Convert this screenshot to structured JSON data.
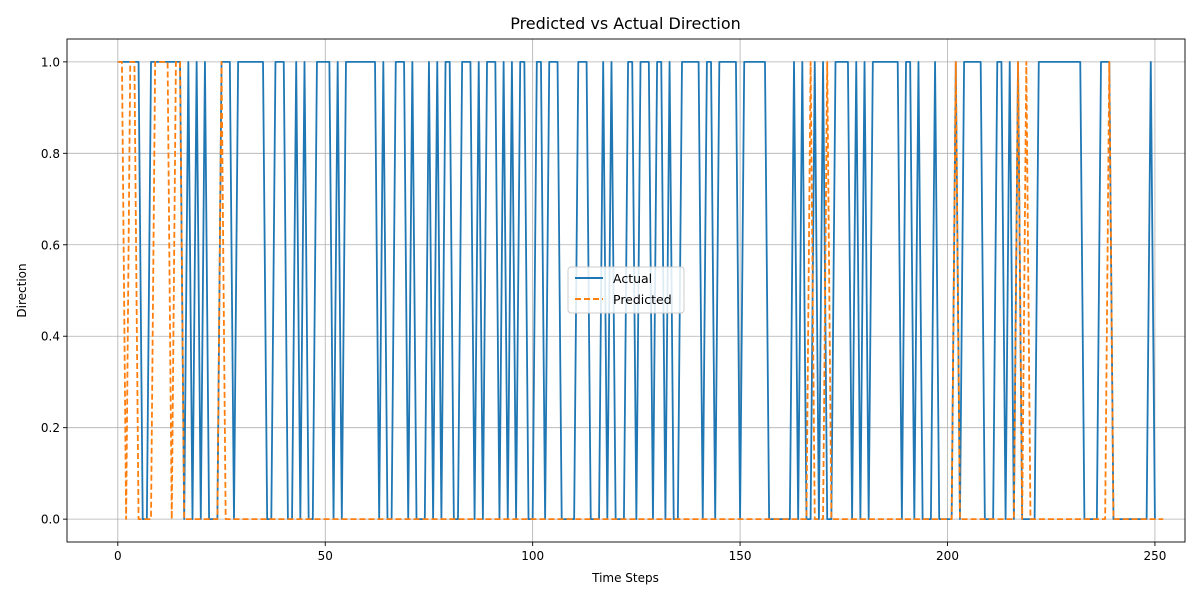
{
  "chart_data": {
    "type": "line",
    "title": "Predicted vs Actual Direction",
    "xlabel": "Time Steps",
    "ylabel": "Direction",
    "xlim": [
      -12.25,
      257.25
    ],
    "ylim": [
      -0.05,
      1.05
    ],
    "xticks": [
      0,
      50,
      100,
      150,
      200,
      250
    ],
    "yticks": [
      0.0,
      0.2,
      0.4,
      0.6,
      0.8,
      1.0
    ],
    "xtick_labels": [
      "0",
      "50",
      "100",
      "150",
      "200",
      "250"
    ],
    "ytick_labels": [
      "0.0",
      "0.2",
      "0.4",
      "0.6",
      "0.8",
      "1.0"
    ],
    "grid": true,
    "legend_position": "center",
    "series": [
      {
        "name": "Actual",
        "color": "#1f77b4",
        "style": "solid",
        "values": [
          1,
          1,
          1,
          1,
          1,
          1,
          0,
          0,
          1,
          1,
          1,
          1,
          1,
          1,
          1,
          1,
          0,
          1,
          0,
          1,
          0,
          1,
          0,
          0,
          0,
          1,
          1,
          1,
          0,
          1,
          1,
          1,
          1,
          1,
          1,
          1,
          0,
          0,
          1,
          1,
          1,
          0,
          0,
          1,
          0,
          1,
          0,
          0,
          1,
          1,
          1,
          1,
          0,
          1,
          0,
          1,
          1,
          1,
          1,
          1,
          1,
          1,
          1,
          0,
          1,
          0,
          0,
          1,
          1,
          1,
          0,
          1,
          0,
          0,
          0,
          1,
          0,
          1,
          0,
          1,
          1,
          0,
          0,
          1,
          1,
          1,
          0,
          1,
          0,
          1,
          1,
          1,
          0,
          1,
          0,
          1,
          0,
          1,
          1,
          0,
          0,
          1,
          1,
          0,
          1,
          1,
          1,
          0,
          0,
          0,
          0,
          1,
          1,
          1,
          0,
          0,
          0,
          1,
          0,
          1,
          0,
          0,
          0,
          1,
          1,
          0,
          1,
          1,
          1,
          0,
          1,
          1,
          0,
          1,
          0,
          0,
          1,
          1,
          1,
          1,
          1,
          0,
          1,
          1,
          0,
          1,
          1,
          1,
          1,
          1,
          0,
          1,
          1,
          1,
          1,
          1,
          1,
          0,
          0,
          0,
          0,
          0,
          0,
          1,
          0,
          1,
          0,
          0,
          1,
          0,
          1,
          0,
          0,
          1,
          1,
          1,
          1,
          0,
          1,
          0,
          1,
          0,
          1,
          1,
          1,
          1,
          1,
          1,
          1,
          0,
          1,
          1,
          0,
          1,
          0,
          0,
          0,
          1,
          0,
          0,
          0,
          0,
          1,
          0,
          1,
          1,
          1,
          1,
          1,
          0,
          0,
          0,
          1,
          1,
          0,
          1,
          0,
          1,
          0,
          0,
          0,
          0,
          1,
          1,
          1,
          1,
          1,
          1,
          1,
          1,
          1,
          1,
          1,
          0,
          0,
          0,
          0,
          1,
          1,
          1,
          0,
          0,
          0,
          0,
          0,
          0,
          0,
          0,
          0,
          1,
          0
        ]
      },
      {
        "name": "Predicted",
        "color": "#ff7f0e",
        "style": "dashed",
        "values": [
          1,
          1,
          0,
          1,
          1,
          0,
          0,
          0,
          0,
          1,
          1,
          1,
          1,
          0,
          1,
          1,
          0,
          0,
          0,
          0,
          0,
          0,
          0,
          0,
          0,
          1,
          0,
          0,
          0,
          0,
          0,
          0,
          0,
          0,
          0,
          0,
          0,
          0,
          0,
          0,
          0,
          0,
          0,
          0,
          0,
          0,
          0,
          0,
          0,
          0,
          0,
          0,
          0,
          0,
          0,
          0,
          0,
          0,
          0,
          0,
          0,
          0,
          0,
          0,
          0,
          0,
          0,
          0,
          0,
          0,
          0,
          0,
          0,
          0,
          0,
          0,
          0,
          0,
          0,
          0,
          0,
          0,
          0,
          0,
          0,
          0,
          0,
          0,
          0,
          0,
          0,
          0,
          0,
          0,
          0,
          0,
          0,
          0,
          0,
          0,
          0,
          0,
          0,
          0,
          0,
          0,
          0,
          0,
          0,
          0,
          0,
          0,
          0,
          0,
          0,
          0,
          0,
          0,
          0,
          0,
          0,
          0,
          0,
          0,
          0,
          0,
          0,
          0,
          0,
          0,
          0,
          0,
          0,
          0,
          0,
          0,
          0,
          0,
          0,
          0,
          0,
          0,
          0,
          0,
          0,
          0,
          0,
          0,
          0,
          0,
          0,
          0,
          0,
          0,
          0,
          0,
          0,
          0,
          0,
          0,
          0,
          0,
          0,
          0,
          0,
          0,
          0,
          1,
          0,
          0,
          0,
          1,
          0,
          0,
          0,
          0,
          0,
          0,
          0,
          0,
          0,
          0,
          0,
          0,
          0,
          0,
          0,
          0,
          0,
          0,
          0,
          0,
          0,
          0,
          0,
          0,
          0,
          0,
          0,
          0,
          0,
          0,
          1,
          0,
          0,
          0,
          0,
          0,
          0,
          0,
          0,
          0,
          0,
          0,
          0,
          0,
          0,
          1,
          0,
          1,
          0,
          0,
          0,
          0,
          0,
          0,
          0,
          0,
          0,
          0,
          0,
          0,
          0,
          0,
          0,
          0,
          0,
          0,
          0,
          1,
          0,
          0,
          0,
          0,
          0,
          0,
          0,
          0,
          0,
          0,
          0,
          0,
          0
        ]
      }
    ]
  }
}
